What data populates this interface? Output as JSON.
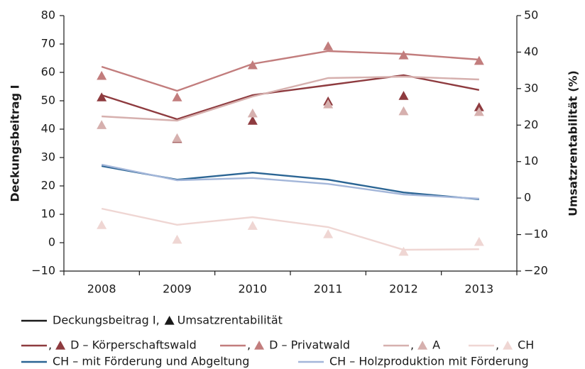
{
  "chart_data": {
    "type": "line",
    "y_label": "Deckungsbeitrag I",
    "y2_label": "Umsatzrentabilität (%)",
    "categories": [
      "2008",
      "2009",
      "2010",
      "2011",
      "2012",
      "2013"
    ],
    "ylim": [
      -10,
      80
    ],
    "yticks": [
      {
        "value": -10,
        "label": "−10"
      },
      0,
      10,
      20,
      30,
      40,
      50,
      60,
      70,
      80
    ],
    "y2lim": [
      -20,
      50
    ],
    "y2ticks": [
      {
        "value": -20,
        "label": "−20"
      },
      {
        "value": -10,
        "label": "−10"
      },
      0,
      10,
      20,
      30,
      40,
      50
    ],
    "grid": false,
    "legend_header": {
      "line_label": "Deckungsbeitrag I,",
      "marker_label": "Umsatzrentabilität",
      "color": "#1a1a1a"
    },
    "legend_separator": ",",
    "series": [
      {
        "name": "D – Körperschaftswald",
        "color": "#8e3b3f",
        "values": [
          52,
          43.5,
          52,
          55.5,
          59,
          53.8
        ],
        "y2_values": [
          27.6,
          16.2,
          21.2,
          26.5,
          28,
          24.9
        ]
      },
      {
        "name": "D – Privatwald",
        "color": "#c27d7d",
        "values": [
          62,
          53.5,
          63,
          67.5,
          66.5,
          64.5
        ],
        "y2_values": [
          33.5,
          27.6,
          36.4,
          41.6,
          39.1,
          37.6
        ]
      },
      {
        "name": "A",
        "color": "#d6b0ae",
        "values": [
          44.5,
          43,
          51.5,
          58,
          58.5,
          57.5
        ],
        "y2_values": [
          20,
          16.4,
          23.2,
          25.7,
          23.8,
          23.6
        ]
      },
      {
        "name": "CH",
        "color": "#efd6d3",
        "values": [
          12,
          6.3,
          9,
          5.5,
          -2.5,
          -2.3
        ],
        "y2_values": [
          -7.4,
          -11.4,
          -7.6,
          -9.9,
          -14.7,
          -12
        ]
      },
      {
        "name": "CH – mit Förderung und Abgeltung",
        "color": "#2b6594",
        "values": [
          27,
          22.2,
          24.7,
          22.2,
          17.7,
          15.3
        ]
      },
      {
        "name": "CH – Holzproduktion mit Förderung",
        "color": "#a3b6d9",
        "values": [
          27.5,
          22,
          22.8,
          20.7,
          17,
          15.5
        ]
      }
    ]
  }
}
